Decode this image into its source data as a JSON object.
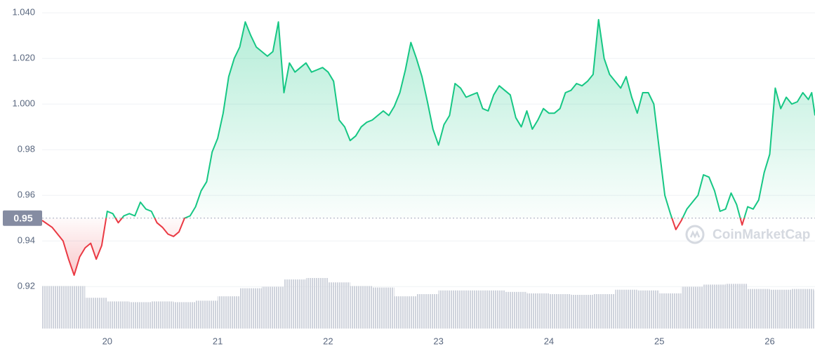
{
  "chart_data": {
    "type": "line",
    "reference_value": 0.95,
    "watermark": "CoinMarketCap",
    "line_color_above": "#16c784",
    "line_color_below": "#ea3943",
    "xlim": [
      19.41,
      26.41
    ],
    "xticks": [
      20,
      21,
      22,
      23,
      24,
      25,
      26
    ],
    "ylim": [
      0.901,
      1.041
    ],
    "yticks": [
      {
        "value": 1.04,
        "label": "1.040"
      },
      {
        "value": 1.02,
        "label": "1.020"
      },
      {
        "value": 1.0,
        "label": "1.000"
      },
      0.98,
      0.96,
      0.94,
      0.92
    ],
    "grid": true,
    "x": [
      19.41,
      19.5,
      19.6,
      19.65,
      19.7,
      19.75,
      19.8,
      19.85,
      19.9,
      19.95,
      20.0,
      20.05,
      20.1,
      20.15,
      20.2,
      20.25,
      20.3,
      20.35,
      20.4,
      20.45,
      20.5,
      20.55,
      20.6,
      20.65,
      20.7,
      20.75,
      20.8,
      20.85,
      20.9,
      20.95,
      21.0,
      21.05,
      21.1,
      21.15,
      21.2,
      21.25,
      21.3,
      21.35,
      21.4,
      21.45,
      21.5,
      21.55,
      21.6,
      21.65,
      21.7,
      21.75,
      21.8,
      21.85,
      21.9,
      21.95,
      22.0,
      22.05,
      22.1,
      22.15,
      22.2,
      22.25,
      22.3,
      22.35,
      22.4,
      22.45,
      22.5,
      22.55,
      22.6,
      22.65,
      22.7,
      22.75,
      22.8,
      22.85,
      22.9,
      22.95,
      23.0,
      23.05,
      23.1,
      23.15,
      23.2,
      23.25,
      23.3,
      23.35,
      23.4,
      23.45,
      23.5,
      23.55,
      23.6,
      23.65,
      23.7,
      23.75,
      23.8,
      23.85,
      23.9,
      23.95,
      24.0,
      24.05,
      24.1,
      24.15,
      24.2,
      24.25,
      24.3,
      24.35,
      24.4,
      24.45,
      24.5,
      24.55,
      24.6,
      24.65,
      24.7,
      24.75,
      24.8,
      24.85,
      24.9,
      24.95,
      25.0,
      25.05,
      25.1,
      25.15,
      25.2,
      25.25,
      25.3,
      25.35,
      25.4,
      25.45,
      25.5,
      25.55,
      25.6,
      25.65,
      25.7,
      25.75,
      25.8,
      25.85,
      25.9,
      25.95,
      26.0,
      26.05,
      26.1,
      26.15,
      26.2,
      26.25,
      26.3,
      26.35,
      26.38,
      26.41
    ],
    "values": [
      0.949,
      0.946,
      0.94,
      0.932,
      0.925,
      0.933,
      0.937,
      0.939,
      0.932,
      0.938,
      0.953,
      0.952,
      0.948,
      0.951,
      0.952,
      0.951,
      0.957,
      0.954,
      0.953,
      0.948,
      0.946,
      0.943,
      0.942,
      0.944,
      0.95,
      0.951,
      0.955,
      0.962,
      0.966,
      0.979,
      0.985,
      0.996,
      1.012,
      1.02,
      1.025,
      1.036,
      1.03,
      1.025,
      1.023,
      1.021,
      1.023,
      1.036,
      1.005,
      1.018,
      1.014,
      1.016,
      1.018,
      1.014,
      1.015,
      1.016,
      1.014,
      1.01,
      0.993,
      0.99,
      0.984,
      0.986,
      0.99,
      0.992,
      0.993,
      0.995,
      0.997,
      0.995,
      0.999,
      1.005,
      1.015,
      1.027,
      1.02,
      1.012,
      1.001,
      0.989,
      0.982,
      0.991,
      0.995,
      1.009,
      1.007,
      1.003,
      1.004,
      1.005,
      0.998,
      0.997,
      1.004,
      1.008,
      1.006,
      1.004,
      0.994,
      0.99,
      0.997,
      0.989,
      0.993,
      0.998,
      0.996,
      0.996,
      0.998,
      1.005,
      1.006,
      1.009,
      1.008,
      1.01,
      1.013,
      1.037,
      1.02,
      1.013,
      1.01,
      1.007,
      1.012,
      1.003,
      0.996,
      1.005,
      1.005,
      1.0,
      0.98,
      0.96,
      0.952,
      0.945,
      0.949,
      0.954,
      0.957,
      0.96,
      0.969,
      0.968,
      0.962,
      0.953,
      0.954,
      0.961,
      0.956,
      0.947,
      0.955,
      0.954,
      0.958,
      0.97,
      0.978,
      1.007,
      0.998,
      1.003,
      1.0,
      1.001,
      1.005,
      1.002,
      1.005,
      0.995
    ],
    "volume": {
      "color": "#cfd3dc",
      "x": [
        19.4,
        19.6,
        19.8,
        20.0,
        20.2,
        20.4,
        20.6,
        20.8,
        21.0,
        21.2,
        21.4,
        21.6,
        21.8,
        22.0,
        22.2,
        22.4,
        22.6,
        22.8,
        23.0,
        23.2,
        23.4,
        23.6,
        23.8,
        24.0,
        24.2,
        24.4,
        24.6,
        24.8,
        25.0,
        25.2,
        25.4,
        25.6,
        25.8,
        26.0,
        26.2,
        26.4
      ],
      "values": [
        58,
        58,
        42,
        37,
        36,
        37,
        36,
        38,
        44,
        55,
        57,
        67,
        69,
        63,
        58,
        56,
        44,
        47,
        52,
        52,
        52,
        50,
        48,
        47,
        46,
        47,
        53,
        52,
        48,
        57,
        60,
        61,
        54,
        53,
        54,
        52
      ]
    }
  }
}
